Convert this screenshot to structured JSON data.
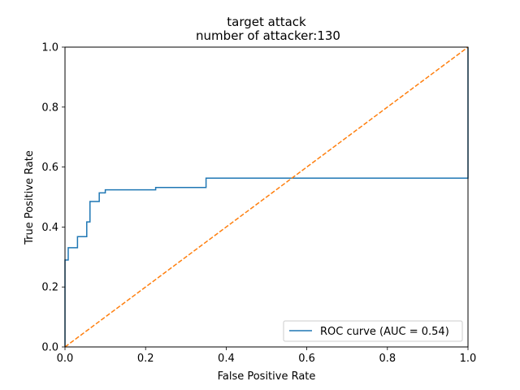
{
  "chart_data": {
    "type": "line",
    "title": "target attack",
    "subtitle": "number of attacker:130",
    "xlabel": "False Positive Rate",
    "ylabel": "True Positive Rate",
    "xlim": [
      0,
      1
    ],
    "ylim": [
      0,
      1
    ],
    "x_ticks": [
      "0.0",
      "0.2",
      "0.4",
      "0.6",
      "0.8",
      "1.0"
    ],
    "y_ticks": [
      "0.0",
      "0.2",
      "0.4",
      "0.6",
      "0.8",
      "1.0"
    ],
    "grid": false,
    "legend_position": "lower-right",
    "series": [
      {
        "name": "ROC curve (AUC = 0.54)",
        "color": "#1f77b4",
        "style": "solid",
        "x": [
          0.0,
          0.0,
          0.008,
          0.008,
          0.031,
          0.031,
          0.054,
          0.054,
          0.062,
          0.062,
          0.085,
          0.085,
          0.1,
          0.1,
          0.225,
          0.225,
          0.35,
          0.35,
          1.0,
          1.0
        ],
        "y": [
          0.0,
          0.29,
          0.29,
          0.331,
          0.331,
          0.368,
          0.368,
          0.417,
          0.417,
          0.485,
          0.485,
          0.514,
          0.514,
          0.524,
          0.524,
          0.532,
          0.532,
          0.563,
          0.563,
          1.0
        ]
      },
      {
        "color": "#ff7f0e",
        "style": "dashed",
        "x": [
          0,
          1
        ],
        "y": [
          0,
          1
        ]
      }
    ]
  }
}
